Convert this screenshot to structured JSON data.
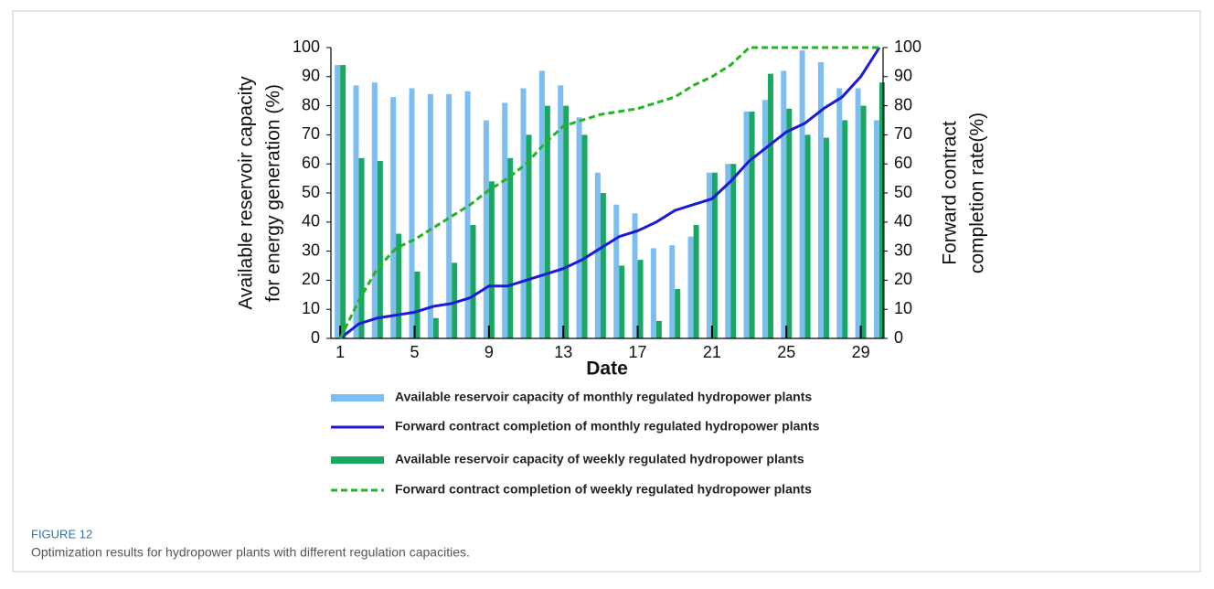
{
  "chart_data": {
    "type": "bar",
    "x": [
      1,
      2,
      3,
      4,
      5,
      6,
      7,
      8,
      9,
      10,
      11,
      12,
      13,
      14,
      15,
      16,
      17,
      18,
      19,
      20,
      21,
      22,
      23,
      24,
      25,
      26,
      27,
      28,
      29,
      30
    ],
    "xlim": [
      0.5,
      30.2
    ],
    "xticks": [
      1,
      5,
      9,
      13,
      17,
      21,
      25,
      29
    ],
    "xlabel": "Date",
    "ylim": [
      0,
      100
    ],
    "yticks": [
      0,
      10,
      20,
      30,
      40,
      50,
      60,
      70,
      80,
      90,
      100
    ],
    "ylabel": [
      "Available reservoir capacity",
      "for energy generation (%)"
    ],
    "y2lim": [
      0,
      100
    ],
    "y2ticks": [
      0,
      10,
      20,
      30,
      40,
      50,
      60,
      70,
      80,
      90,
      100
    ],
    "y2label": [
      "Forward contract",
      "completion rate(%)"
    ],
    "series": [
      {
        "name": "Available reservoir capacity of  monthly regulated hydropower plants",
        "type": "bar",
        "color": "#7dbdf0",
        "values": [
          94,
          87,
          88,
          83,
          86,
          84,
          84,
          85,
          75,
          81,
          86,
          92,
          87,
          76,
          57,
          46,
          43,
          31,
          32,
          35,
          57,
          60,
          78,
          82,
          92,
          99,
          95,
          86,
          86,
          75
        ]
      },
      {
        "name": "Forward contract completion of  monthly regulated hydropower plants",
        "type": "line",
        "axis": "y2",
        "color": "#1a1ad8",
        "dashed": false,
        "values": [
          0,
          5,
          7,
          8,
          9,
          11,
          12,
          14,
          18,
          18,
          20,
          22,
          24,
          27,
          31,
          35,
          37,
          40,
          44,
          46,
          48,
          54,
          61,
          66,
          71,
          74,
          79,
          83,
          90,
          100
        ]
      },
      {
        "name": "Available reservoir capacity of weekly regulated hydropower plants",
        "type": "bar",
        "color": "#19a862",
        "values": [
          94,
          62,
          61,
          36,
          23,
          7,
          26,
          39,
          54,
          62,
          70,
          80,
          80,
          70,
          50,
          25,
          27,
          6,
          17,
          39,
          57,
          60,
          78,
          91,
          79,
          70,
          69,
          75,
          80,
          88
        ]
      },
      {
        "name": "Forward contract completion of weekly regulated hydropower plants",
        "type": "line",
        "axis": "y2",
        "color": "#22b422",
        "dashed": true,
        "values": [
          0,
          13,
          24,
          31,
          34,
          38,
          42,
          46,
          51,
          55,
          60,
          67,
          73,
          75,
          77,
          78,
          79,
          81,
          83,
          87,
          90,
          94,
          100,
          100,
          100,
          100,
          100,
          100,
          100,
          100
        ]
      }
    ]
  },
  "figure_label": "FIGURE 12",
  "caption": "Optimization results for hydropower plants with different regulation capacities."
}
